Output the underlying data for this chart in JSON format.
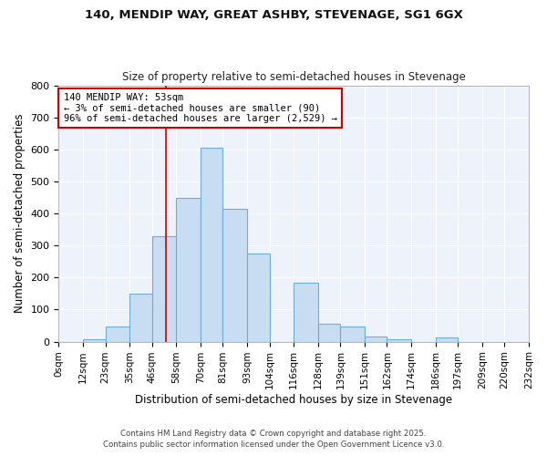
{
  "title1": "140, MENDIP WAY, GREAT ASHBY, STEVENAGE, SG1 6GX",
  "title2": "Size of property relative to semi-detached houses in Stevenage",
  "xlabel": "Distribution of semi-detached houses by size in Stevenage",
  "ylabel": "Number of semi-detached properties",
  "bin_edges": [
    0,
    12,
    23,
    35,
    46,
    58,
    70,
    81,
    93,
    104,
    116,
    128,
    139,
    151,
    162,
    174,
    186,
    197,
    209,
    220,
    232
  ],
  "bin_labels": [
    "0sqm",
    "12sqm",
    "23sqm",
    "35sqm",
    "46sqm",
    "58sqm",
    "70sqm",
    "81sqm",
    "93sqm",
    "104sqm",
    "116sqm",
    "128sqm",
    "139sqm",
    "151sqm",
    "162sqm",
    "174sqm",
    "186sqm",
    "197sqm",
    "209sqm",
    "220sqm",
    "232sqm"
  ],
  "counts": [
    0,
    8,
    47,
    150,
    330,
    450,
    605,
    415,
    275,
    0,
    185,
    55,
    47,
    17,
    8,
    0,
    12,
    0,
    0,
    0
  ],
  "bar_color": "#c9ddf2",
  "bar_edge_color": "#6baed6",
  "background_color": "#eef2fb",
  "grid_color": "#ffffff",
  "property_line_x": 53,
  "property_line_color": "#cc0000",
  "annotation_title": "140 MENDIP WAY: 53sqm",
  "annotation_line1": "← 3% of semi-detached houses are smaller (90)",
  "annotation_line2": "96% of semi-detached houses are larger (2,529) →",
  "annotation_box_color": "#cc0000",
  "ylim": [
    0,
    800
  ],
  "yticks": [
    0,
    100,
    200,
    300,
    400,
    500,
    600,
    700,
    800
  ],
  "footer1": "Contains HM Land Registry data © Crown copyright and database right 2025.",
  "footer2": "Contains public sector information licensed under the Open Government Licence v3.0.",
  "fig_bg": "#ffffff"
}
